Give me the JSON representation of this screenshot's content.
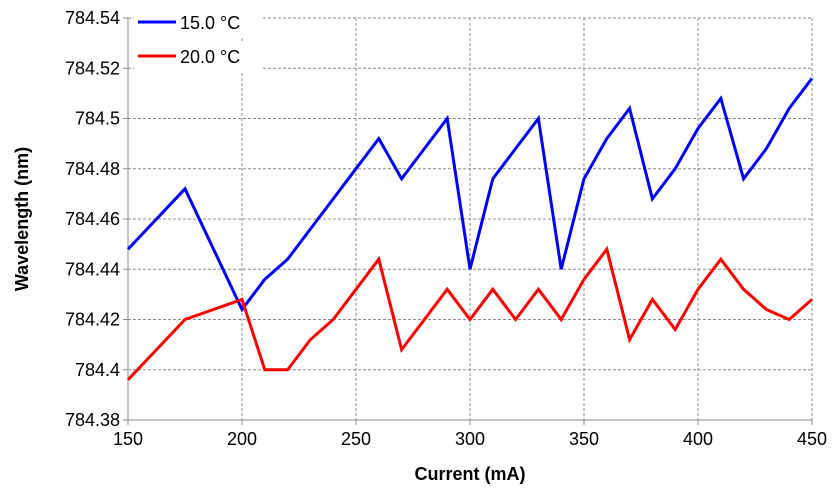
{
  "chart_data": {
    "type": "line",
    "title": "",
    "xlabel": "Current (mA)",
    "ylabel": "Wavelength (nm)",
    "xlim": [
      150,
      450
    ],
    "ylim": [
      784.38,
      784.54
    ],
    "x_ticks": [
      "150",
      "200",
      "250",
      "300",
      "350",
      "400",
      "450"
    ],
    "y_ticks": [
      "784.38",
      "784.4",
      "784.42",
      "784.44",
      "784.46",
      "784.48",
      "784.5",
      "784.52",
      "784.54"
    ],
    "grid": true,
    "legend_position": "top-left",
    "series": [
      {
        "name": "15.0 °C",
        "color": "#0000ff",
        "x": [
          150,
          175,
          200,
          210,
          220,
          230,
          240,
          250,
          260,
          270,
          280,
          290,
          300,
          310,
          320,
          330,
          340,
          350,
          360,
          370,
          380,
          390,
          400,
          410,
          420,
          430,
          440,
          450
        ],
        "y": [
          784.448,
          784.472,
          784.424,
          784.436,
          784.444,
          784.456,
          784.468,
          784.48,
          784.492,
          784.476,
          784.488,
          784.5,
          784.44,
          784.476,
          784.488,
          784.5,
          784.44,
          784.476,
          784.492,
          784.504,
          784.468,
          784.48,
          784.496,
          784.508,
          784.476,
          784.488,
          784.504,
          784.516
        ]
      },
      {
        "name": "20.0 °C",
        "color": "#ff0000",
        "x": [
          150,
          175,
          200,
          210,
          220,
          230,
          240,
          250,
          260,
          270,
          280,
          290,
          300,
          310,
          320,
          330,
          340,
          350,
          360,
          370,
          380,
          390,
          400,
          410,
          420,
          430,
          440,
          450
        ],
        "y": [
          784.396,
          784.42,
          784.428,
          784.4,
          784.4,
          784.412,
          784.42,
          784.432,
          784.444,
          784.408,
          784.42,
          784.432,
          784.42,
          784.432,
          784.42,
          784.432,
          784.42,
          784.436,
          784.448,
          784.412,
          784.428,
          784.416,
          784.432,
          784.444,
          784.432,
          784.424,
          784.42,
          784.428
        ]
      }
    ]
  }
}
